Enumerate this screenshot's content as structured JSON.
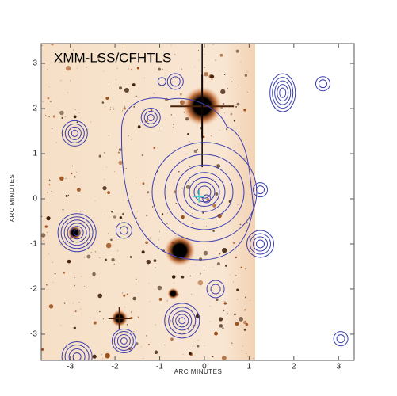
{
  "chart_data": {
    "type": "contour-image",
    "title": "XMM-LSS/CFHTLS",
    "xlabel": "ARC MINUTES",
    "ylabel": "ARC MINUTES",
    "xlim": [
      -3.65,
      3.35
    ],
    "ylim": [
      -3.58,
      3.44
    ],
    "xticks": [
      -3,
      -2,
      -1,
      0,
      1,
      2,
      3
    ],
    "yticks": [
      -3,
      -2,
      -1,
      0,
      1,
      2,
      3
    ]
  }
}
